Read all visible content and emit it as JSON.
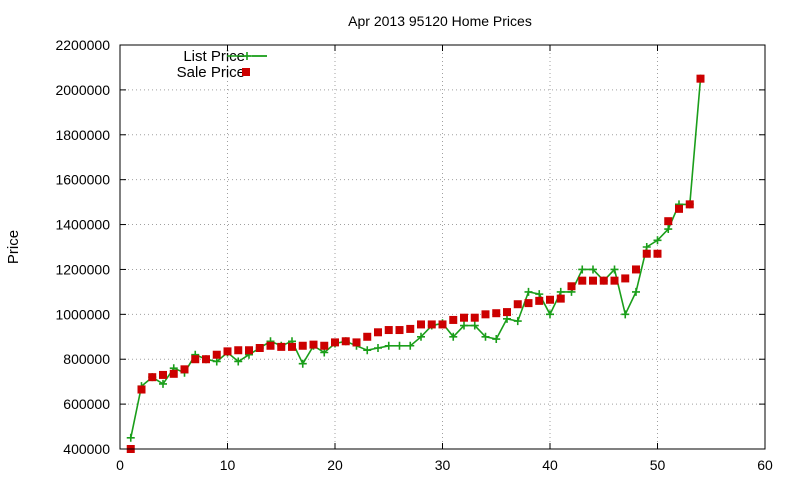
{
  "chart_data": {
    "type": "line",
    "title": "Apr 2013 95120 Home Prices",
    "xlabel": "",
    "ylabel": "Price",
    "xlim": [
      0,
      60
    ],
    "ylim": [
      400000,
      2200000
    ],
    "x_ticks": [
      "0",
      "10",
      "20",
      "30",
      "40",
      "50",
      "60"
    ],
    "y_ticks": [
      "400000",
      "600000",
      "800000",
      "1000000",
      "1200000",
      "1400000",
      "1600000",
      "1800000",
      "2000000",
      "2200000"
    ],
    "grid": true,
    "legend_position": "top-left",
    "series": [
      {
        "name": "List Price",
        "style": "line-with-plus-markers",
        "color": "#1a9e1a",
        "x": [
          1,
          2,
          3,
          4,
          5,
          6,
          7,
          8,
          9,
          10,
          11,
          12,
          13,
          14,
          15,
          16,
          17,
          18,
          19,
          20,
          21,
          22,
          23,
          24,
          25,
          26,
          27,
          28,
          29,
          30,
          31,
          32,
          33,
          34,
          35,
          36,
          37,
          38,
          39,
          40,
          41,
          42,
          43,
          44,
          45,
          46,
          47,
          48,
          49,
          50,
          51,
          52,
          53,
          54
        ],
        "y": [
          450000,
          680000,
          720000,
          690000,
          760000,
          740000,
          820000,
          800000,
          790000,
          830000,
          790000,
          820000,
          850000,
          880000,
          860000,
          880000,
          780000,
          860000,
          830000,
          870000,
          880000,
          860000,
          840000,
          850000,
          860000,
          860000,
          860000,
          900000,
          950000,
          960000,
          900000,
          950000,
          950000,
          900000,
          890000,
          980000,
          970000,
          1100000,
          1090000,
          1000000,
          1100000,
          1100000,
          1200000,
          1200000,
          1150000,
          1200000,
          1000000,
          1100000,
          1300000,
          1330000,
          1380000,
          1490000,
          1490000,
          2050000
        ]
      },
      {
        "name": "Sale Price",
        "style": "square-markers",
        "color": "#cc0000",
        "x": [
          1,
          2,
          3,
          4,
          5,
          6,
          7,
          8,
          9,
          10,
          11,
          12,
          13,
          14,
          15,
          16,
          17,
          18,
          19,
          20,
          21,
          22,
          23,
          24,
          25,
          26,
          27,
          28,
          29,
          30,
          31,
          32,
          33,
          34,
          35,
          36,
          37,
          38,
          39,
          40,
          41,
          42,
          43,
          44,
          45,
          46,
          47,
          48,
          49,
          50,
          51,
          52,
          53,
          54
        ],
        "y": [
          400000,
          665000,
          720000,
          730000,
          735000,
          755000,
          800000,
          800000,
          820000,
          835000,
          840000,
          840000,
          850000,
          860000,
          855000,
          855000,
          860000,
          865000,
          860000,
          875000,
          880000,
          875000,
          900000,
          920000,
          930000,
          930000,
          935000,
          955000,
          955000,
          955000,
          975000,
          985000,
          985000,
          1000000,
          1005000,
          1010000,
          1045000,
          1050000,
          1060000,
          1065000,
          1070000,
          1125000,
          1150000,
          1150000,
          1150000,
          1150000,
          1160000,
          1200000,
          1270000,
          1270000,
          1415000,
          1470000,
          1490000,
          2050000
        ]
      }
    ]
  }
}
